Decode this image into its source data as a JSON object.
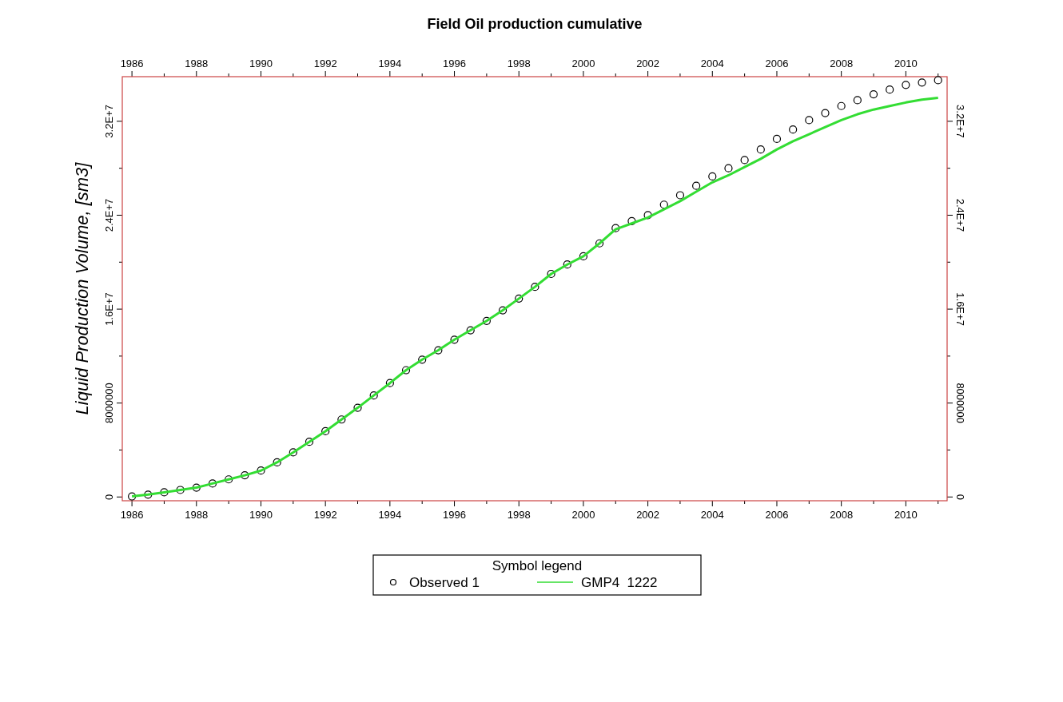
{
  "chart_data": {
    "type": "line",
    "title": "Field Oil production cumulative",
    "ylabel": "Liquid Production Volume, [sm3]",
    "legend_title": "Symbol legend",
    "legend": "bottom",
    "x": [
      1986,
      1986.5,
      1987,
      1987.5,
      1988,
      1988.5,
      1989,
      1989.5,
      1990,
      1990.5,
      1991,
      1991.5,
      1992,
      1992.5,
      1993,
      1993.5,
      1994,
      1994.5,
      1995,
      1995.5,
      1996,
      1996.5,
      1997,
      1997.5,
      1998,
      1998.5,
      1999,
      1999.5,
      2000,
      2000.5,
      2001,
      2001.5,
      2002,
      2002.5,
      2003,
      2003.5,
      2004,
      2004.5,
      2005,
      2005.5,
      2006,
      2006.5,
      2007,
      2007.5,
      2008,
      2008.5,
      2009,
      2009.5,
      2010,
      2010.5,
      2011
    ],
    "series": [
      {
        "name": "Observed 1",
        "type": "scatter",
        "marker": "circle",
        "color": "#000000",
        "values": [
          50000,
          200000,
          400000,
          600000,
          800000,
          1150000,
          1500000,
          1850000,
          2250000,
          2950000,
          3800000,
          4700000,
          5600000,
          6600000,
          7600000,
          8650000,
          9700000,
          10800000,
          11700000,
          12500000,
          13400000,
          14200000,
          15000000,
          15900000,
          16900000,
          17900000,
          19000000,
          19800000,
          20500000,
          21600000,
          22900000,
          23500000,
          24000000,
          24900000,
          25700000,
          26500000,
          27300000,
          28000000,
          28700000,
          29600000,
          30500000,
          31300000,
          32100000,
          32700000,
          33300000,
          33800000,
          34300000,
          34700000,
          35100000,
          35300000,
          35500000
        ]
      },
      {
        "name": "GMP4  1222",
        "color": "#33dd33",
        "values": [
          50000,
          200000,
          400000,
          600000,
          800000,
          1150000,
          1500000,
          1850000,
          2250000,
          2950000,
          3800000,
          4700000,
          5600000,
          6600000,
          7600000,
          8650000,
          9700000,
          10800000,
          11700000,
          12500000,
          13400000,
          14200000,
          15000000,
          15900000,
          16900000,
          17900000,
          19000000,
          19800000,
          20500000,
          21600000,
          22800000,
          23300000,
          23800000,
          24500000,
          25200000,
          26000000,
          26800000,
          27400000,
          28100000,
          28800000,
          29600000,
          30300000,
          30900000,
          31500000,
          32100000,
          32600000,
          33000000,
          33300000,
          33600000,
          33850000,
          34000000
        ]
      }
    ],
    "xlim": [
      1985.7,
      2011.28
    ],
    "xticks": [
      1986,
      {
        "value": 1987,
        "label": null
      },
      1988,
      {
        "value": 1989,
        "label": null
      },
      1990,
      {
        "value": 1991,
        "label": null
      },
      1992,
      {
        "value": 1993,
        "label": null
      },
      1994,
      {
        "value": 1995,
        "label": null
      },
      1996,
      {
        "value": 1997,
        "label": null
      },
      1998,
      {
        "value": 1999,
        "label": null
      },
      2000,
      {
        "value": 2001,
        "label": null
      },
      2002,
      {
        "value": 2003,
        "label": null
      },
      2004,
      {
        "value": 2005,
        "label": null
      },
      2006,
      {
        "value": 2007,
        "label": null
      },
      2008,
      {
        "value": 2009,
        "label": null
      },
      2010,
      {
        "value": 2011,
        "label": null
      }
    ],
    "x2lim": [
      1985.7,
      2011.28
    ],
    "x2ticks": [
      1986,
      {
        "value": 1987,
        "label": null
      },
      1988,
      {
        "value": 1989,
        "label": null
      },
      1990,
      {
        "value": 1991,
        "label": null
      },
      1992,
      {
        "value": 1993,
        "label": null
      },
      1994,
      {
        "value": 1995,
        "label": null
      },
      1996,
      {
        "value": 1997,
        "label": null
      },
      1998,
      {
        "value": 1999,
        "label": null
      },
      2000,
      {
        "value": 2001,
        "label": null
      },
      2002,
      {
        "value": 2003,
        "label": null
      },
      2004,
      {
        "value": 2005,
        "label": null
      },
      2006,
      {
        "value": 2007,
        "label": null
      },
      2008,
      {
        "value": 2009,
        "label": null
      },
      2010,
      {
        "value": 2011,
        "label": null
      }
    ],
    "ylim": [
      -320000,
      35800000
    ],
    "yticks": [
      0,
      {
        "value": 4000000,
        "label": null
      },
      8000000,
      {
        "value": 12000000,
        "label": null
      },
      {
        "value": 16000000,
        "label": "1.6E+7"
      },
      {
        "value": 20000000,
        "label": null
      },
      {
        "value": 24000000,
        "label": "2.4E+7"
      },
      {
        "value": 28000000,
        "label": null
      },
      {
        "value": 32000000,
        "label": "3.2E+7"
      }
    ],
    "y2lim": [
      -320000,
      35800000
    ],
    "y2ticks": [
      0,
      {
        "value": 4000000,
        "label": null
      },
      8000000,
      {
        "value": 12000000,
        "label": null
      },
      {
        "value": 16000000,
        "label": "1.6E+7"
      },
      {
        "value": 20000000,
        "label": null
      },
      {
        "value": 24000000,
        "label": "2.4E+7"
      },
      {
        "value": 28000000,
        "label": null
      },
      {
        "value": 32000000,
        "label": "3.2E+7"
      }
    ],
    "grid": false
  }
}
